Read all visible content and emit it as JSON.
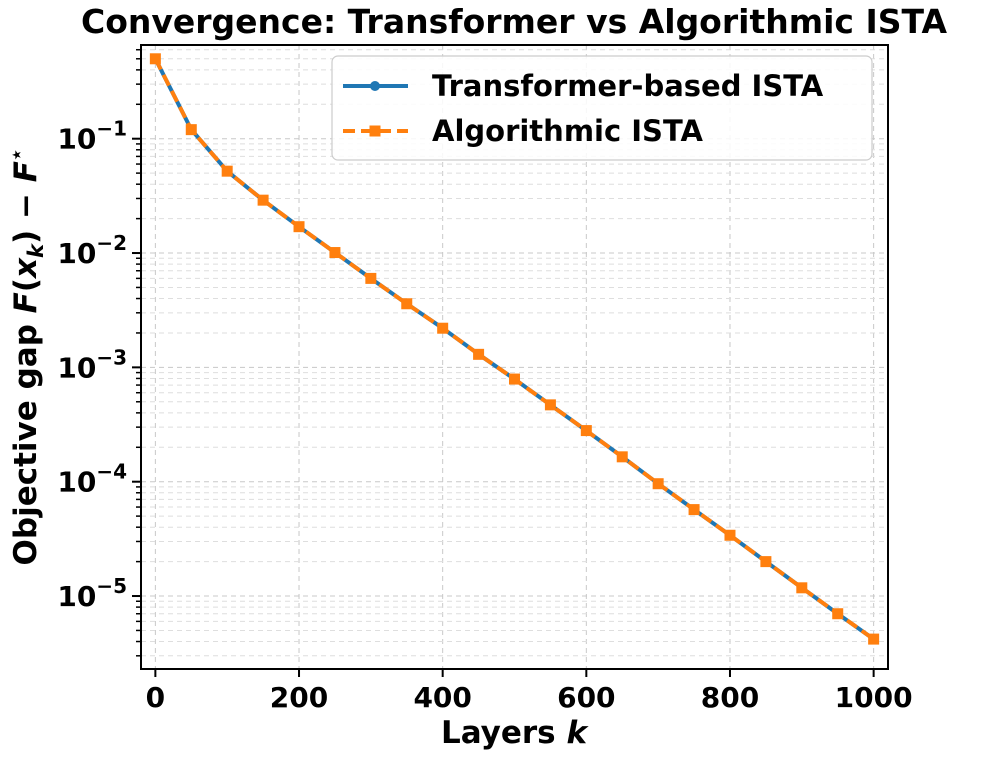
{
  "chart_data": {
    "type": "line",
    "title": "Convergence: Transformer vs Algorithmic ISTA",
    "xlabel": "Layers",
    "xlabel_var": "k",
    "ylabel": {
      "prefix": "Objective gap",
      "F": "F",
      "x": "x",
      "k": "k",
      "minus": "− F",
      "star": "⋆"
    },
    "xlim": [
      -20,
      1020
    ],
    "ylim": [
      2.3e-06,
      0.66
    ],
    "yscale": "log",
    "grid": true,
    "legend_position": "upper right",
    "x_ticks": [
      0,
      200,
      400,
      600,
      800,
      1000
    ],
    "y_ticks": [
      {
        "value": 0.1,
        "base": "10",
        "exp": "−1"
      },
      {
        "value": 0.01,
        "base": "10",
        "exp": "−2"
      },
      {
        "value": 0.001,
        "base": "10",
        "exp": "−3"
      },
      {
        "value": 0.0001,
        "base": "10",
        "exp": "−4"
      },
      {
        "value": 1e-05,
        "base": "10",
        "exp": "−5"
      }
    ],
    "x": [
      0,
      50,
      100,
      150,
      200,
      250,
      300,
      350,
      400,
      450,
      500,
      550,
      600,
      650,
      700,
      750,
      800,
      850,
      900,
      950,
      1000
    ],
    "series": [
      {
        "name": "Transformer-based ISTA",
        "color": "#1f77b4",
        "style": "solid",
        "marker": "circle",
        "values": [
          0.5,
          0.12,
          0.052,
          0.029,
          0.017,
          0.0101,
          0.006,
          0.0036,
          0.0022,
          0.0013,
          0.00079,
          0.00047,
          0.00028,
          0.000165,
          9.6e-05,
          5.7e-05,
          3.4e-05,
          2e-05,
          1.18e-05,
          7e-06,
          4.2e-06
        ]
      },
      {
        "name": "Algorithmic ISTA",
        "color": "#ff7f0e",
        "style": "dashed",
        "marker": "square",
        "values": [
          0.5,
          0.12,
          0.052,
          0.029,
          0.017,
          0.0101,
          0.006,
          0.0036,
          0.0022,
          0.0013,
          0.00079,
          0.00047,
          0.00028,
          0.000165,
          9.6e-05,
          5.7e-05,
          3.4e-05,
          2e-05,
          1.18e-05,
          7e-06,
          4.2e-06
        ]
      }
    ]
  }
}
